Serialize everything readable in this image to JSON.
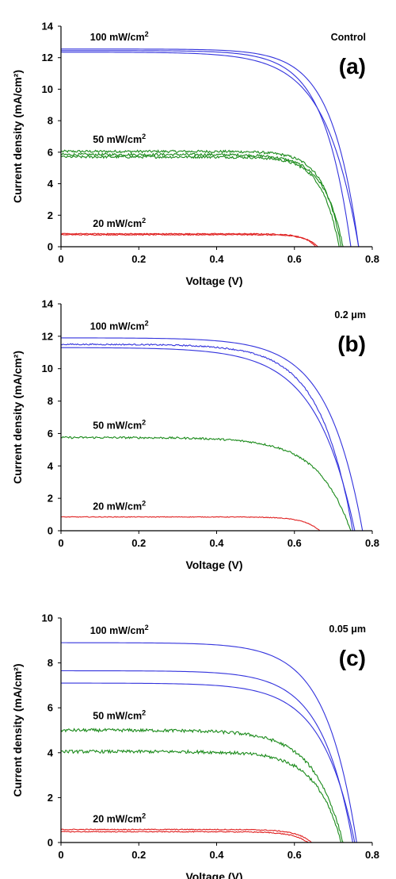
{
  "chart_data": [
    {
      "type": "line",
      "panel_label": "(a)",
      "corner_label": "Control",
      "xlabel": "Voltage (V)",
      "ylabel": "Current density (mA/cm²)",
      "xlim": [
        0,
        0.8
      ],
      "ylim": [
        0,
        14
      ],
      "xticks": [
        "0",
        "0.2",
        "0.4",
        "0.6",
        "0.8"
      ],
      "yticks": [
        "0",
        "2",
        "4",
        "6",
        "8",
        "10",
        "12",
        "14"
      ],
      "grid": false,
      "annotations": [
        {
          "base": "100 mW/cm",
          "sup": "2",
          "at": [
            0.15,
            13.1
          ]
        },
        {
          "base": "50 mW/cm",
          "sup": "2",
          "at": [
            0.15,
            6.6
          ]
        },
        {
          "base": "20 mW/cm",
          "sup": "2",
          "at": [
            0.15,
            1.25
          ]
        }
      ],
      "series": [
        {
          "group": "100 mW/cm2",
          "color": "#3333dd",
          "jsc": 12.55,
          "voc": 0.765,
          "k": 0.07,
          "noise": 0
        },
        {
          "group": "100 mW/cm2",
          "color": "#3333dd",
          "jsc": 12.45,
          "voc": 0.745,
          "k": 0.07,
          "noise": 0
        },
        {
          "group": "100 mW/cm2",
          "color": "#3333dd",
          "jsc": 12.35,
          "voc": 0.765,
          "k": 0.085,
          "noise": 0
        },
        {
          "group": "50 mW/cm2",
          "color": "#1a8a1a",
          "jsc": 6.05,
          "voc": 0.72,
          "k": 0.045,
          "noise": 0.08
        },
        {
          "group": "50 mW/cm2",
          "color": "#1a8a1a",
          "jsc": 5.85,
          "voc": 0.725,
          "k": 0.05,
          "noise": 0.08
        },
        {
          "group": "50 mW/cm2",
          "color": "#1a8a1a",
          "jsc": 5.7,
          "voc": 0.715,
          "k": 0.045,
          "noise": 0.08
        },
        {
          "group": "20 mW/cm2",
          "color": "#e02020",
          "jsc": 0.82,
          "voc": 0.655,
          "k": 0.03,
          "noise": 0.03
        },
        {
          "group": "20 mW/cm2",
          "color": "#e02020",
          "jsc": 0.76,
          "voc": 0.66,
          "k": 0.03,
          "noise": 0.03
        }
      ]
    },
    {
      "type": "line",
      "panel_label": "(b)",
      "corner_label": "0.2 μm",
      "xlabel": "Voltage (V)",
      "ylabel": "Current density (mA/cm²)",
      "xlim": [
        0,
        0.8
      ],
      "ylim": [
        0,
        14
      ],
      "xticks": [
        "0",
        "0.2",
        "0.4",
        "0.6",
        "0.8"
      ],
      "yticks": [
        "0",
        "2",
        "4",
        "6",
        "8",
        "10",
        "12",
        "14"
      ],
      "grid": false,
      "annotations": [
        {
          "base": "100 mW/cm",
          "sup": "2",
          "at": [
            0.15,
            12.4
          ]
        },
        {
          "base": "50 mW/cm",
          "sup": "2",
          "at": [
            0.15,
            6.3
          ]
        },
        {
          "base": "20 mW/cm",
          "sup": "2",
          "at": [
            0.15,
            1.3
          ]
        }
      ],
      "series": [
        {
          "group": "100 mW/cm2",
          "color": "#3333dd",
          "jsc": 11.9,
          "voc": 0.775,
          "k": 0.09,
          "noise": 0
        },
        {
          "group": "100 mW/cm2",
          "color": "#3333dd",
          "jsc": 11.5,
          "voc": 0.75,
          "k": 0.085,
          "noise": 0.04
        },
        {
          "group": "100 mW/cm2",
          "color": "#3333dd",
          "jsc": 11.3,
          "voc": 0.755,
          "k": 0.1,
          "noise": 0
        },
        {
          "group": "50 mW/cm2",
          "color": "#1a8a1a",
          "jsc": 5.75,
          "voc": 0.745,
          "k": 0.085,
          "noise": 0.06
        },
        {
          "group": "20 mW/cm2",
          "color": "#e02020",
          "jsc": 0.85,
          "voc": 0.665,
          "k": 0.04,
          "noise": 0.02
        }
      ]
    },
    {
      "type": "line",
      "panel_label": "(c)",
      "corner_label": "0.05 μm",
      "xlabel": "Voltage (V)",
      "ylabel": "Current density (mA/cm²)",
      "xlim": [
        0,
        0.8
      ],
      "ylim": [
        0,
        10
      ],
      "xticks": [
        "0",
        "0.2",
        "0.4",
        "0.6",
        "0.8"
      ],
      "yticks": [
        "0",
        "2",
        "4",
        "6",
        "8",
        "10"
      ],
      "grid": false,
      "annotations": [
        {
          "base": "100 mW/cm",
          "sup": "2",
          "at": [
            0.15,
            9.3
          ]
        },
        {
          "base": "50 mW/cm",
          "sup": "2",
          "at": [
            0.15,
            5.5
          ]
        },
        {
          "base": "20 mW/cm",
          "sup": "2",
          "at": [
            0.15,
            0.9
          ]
        }
      ],
      "series": [
        {
          "group": "100 mW/cm2",
          "color": "#3333dd",
          "jsc": 8.9,
          "voc": 0.76,
          "k": 0.08,
          "noise": 0
        },
        {
          "group": "100 mW/cm2",
          "color": "#3333dd",
          "jsc": 7.65,
          "voc": 0.75,
          "k": 0.08,
          "noise": 0
        },
        {
          "group": "100 mW/cm2",
          "color": "#3333dd",
          "jsc": 7.1,
          "voc": 0.755,
          "k": 0.085,
          "noise": 0
        },
        {
          "group": "50 mW/cm2",
          "color": "#1a8a1a",
          "jsc": 5.0,
          "voc": 0.725,
          "k": 0.075,
          "noise": 0.07
        },
        {
          "group": "50 mW/cm2",
          "color": "#1a8a1a",
          "jsc": 4.05,
          "voc": 0.72,
          "k": 0.065,
          "noise": 0.07
        },
        {
          "group": "20 mW/cm2",
          "color": "#e02020",
          "jsc": 0.58,
          "voc": 0.645,
          "k": 0.04,
          "noise": 0.02
        },
        {
          "group": "20 mW/cm2",
          "color": "#e02020",
          "jsc": 0.48,
          "voc": 0.635,
          "k": 0.04,
          "noise": 0.02
        }
      ]
    }
  ]
}
